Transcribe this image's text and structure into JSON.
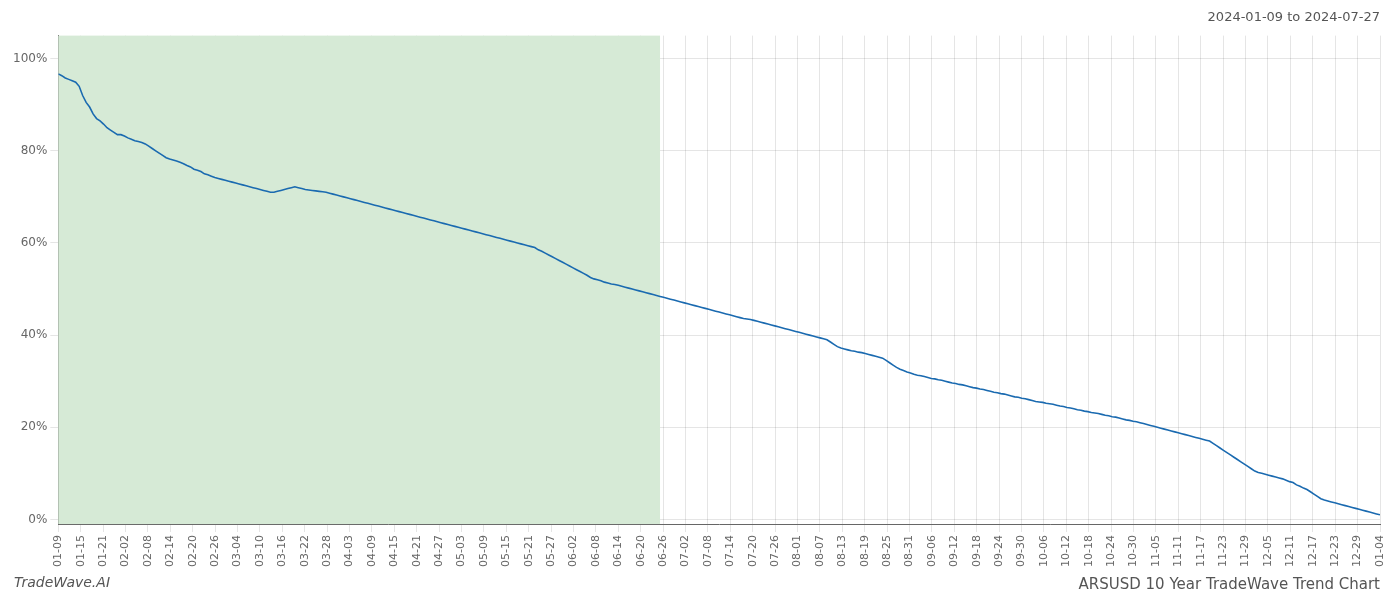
{
  "chart_data": {
    "type": "line",
    "title": "ARSUSD 10 Year TradeWave Trend Chart",
    "subtitle": "2024-01-09 to 2024-07-27",
    "annotations": [
      "TradeWave.AI"
    ],
    "color": "#1a6ab0",
    "grid": true,
    "shaded": {
      "x": [
        0,
        173
      ],
      "color": "#d6ead6"
    },
    "xlim": [
      0,
      380
    ],
    "xticks": [
      {
        "value": 0,
        "label": "01-09"
      },
      {
        "value": 6.441,
        "label": "01-15"
      },
      {
        "value": 12.881,
        "label": "01-21"
      },
      {
        "value": 19.322,
        "label": "02-02"
      },
      {
        "value": 25.763,
        "label": "02-08"
      },
      {
        "value": 32.203,
        "label": "02-14"
      },
      {
        "value": 38.644,
        "label": "02-20"
      },
      {
        "value": 45.085,
        "label": "02-26"
      },
      {
        "value": 51.525,
        "label": "03-04"
      },
      {
        "value": 57.966,
        "label": "03-10"
      },
      {
        "value": 64.407,
        "label": "03-16"
      },
      {
        "value": 70.847,
        "label": "03-22"
      },
      {
        "value": 77.288,
        "label": "03-28"
      },
      {
        "value": 83.729,
        "label": "04-03"
      },
      {
        "value": 90.169,
        "label": "04-09"
      },
      {
        "value": 96.61,
        "label": "04-15"
      },
      {
        "value": 103.051,
        "label": "04-21"
      },
      {
        "value": 109.492,
        "label": "04-27"
      },
      {
        "value": 115.932,
        "label": "05-03"
      },
      {
        "value": 122.373,
        "label": "05-09"
      },
      {
        "value": 128.814,
        "label": "05-15"
      },
      {
        "value": 135.254,
        "label": "05-21"
      },
      {
        "value": 141.695,
        "label": "05-27"
      },
      {
        "value": 148.136,
        "label": "06-02"
      },
      {
        "value": 154.576,
        "label": "06-08"
      },
      {
        "value": 161.017,
        "label": "06-14"
      },
      {
        "value": 167.458,
        "label": "06-20"
      },
      {
        "value": 173.898,
        "label": "06-26"
      },
      {
        "value": 180.339,
        "label": "07-02"
      },
      {
        "value": 186.78,
        "label": "07-08"
      },
      {
        "value": 193.22,
        "label": "07-14"
      },
      {
        "value": 199.661,
        "label": "07-20"
      },
      {
        "value": 206.102,
        "label": "07-26"
      },
      {
        "value": 212.542,
        "label": "08-01"
      },
      {
        "value": 218.983,
        "label": "08-07"
      },
      {
        "value": 225.424,
        "label": "08-13"
      },
      {
        "value": 231.864,
        "label": "08-19"
      },
      {
        "value": 238.305,
        "label": "08-25"
      },
      {
        "value": 244.746,
        "label": "08-31"
      },
      {
        "value": 251.186,
        "label": "09-06"
      },
      {
        "value": 257.627,
        "label": "09-12"
      },
      {
        "value": 264.068,
        "label": "09-18"
      },
      {
        "value": 270.508,
        "label": "09-24"
      },
      {
        "value": 276.949,
        "label": "09-30"
      },
      {
        "value": 283.39,
        "label": "10-06"
      },
      {
        "value": 289.831,
        "label": "10-12"
      },
      {
        "value": 296.271,
        "label": "10-18"
      },
      {
        "value": 302.712,
        "label": "10-24"
      },
      {
        "value": 309.153,
        "label": "10-30"
      },
      {
        "value": 315.593,
        "label": "11-05"
      },
      {
        "value": 322.034,
        "label": "11-11"
      },
      {
        "value": 328.475,
        "label": "11-17"
      },
      {
        "value": 334.915,
        "label": "11-23"
      },
      {
        "value": 341.356,
        "label": "11-29"
      },
      {
        "value": 347.797,
        "label": "12-05"
      },
      {
        "value": 354.237,
        "label": "12-11"
      },
      {
        "value": 360.678,
        "label": "12-17"
      },
      {
        "value": 367.119,
        "label": "12-23"
      },
      {
        "value": 373.559,
        "label": "12-29"
      },
      {
        "value": 380,
        "label": "01-04"
      }
    ],
    "ylim": [
      -0.01,
      1.05
    ],
    "yticks": [
      {
        "value": 0.0,
        "label": "0%"
      },
      {
        "value": 0.2,
        "label": "20%"
      },
      {
        "value": 0.4,
        "label": "40%"
      },
      {
        "value": 0.6,
        "label": "60%"
      },
      {
        "value": 0.8,
        "label": "80%"
      },
      {
        "value": 1.0,
        "label": "100%"
      }
    ],
    "values": [
      0.967,
      0.963,
      0.958,
      0.955,
      0.952,
      0.949,
      0.94,
      0.92,
      0.905,
      0.895,
      0.88,
      0.87,
      0.865,
      0.858,
      0.85,
      0.845,
      0.84,
      0.835,
      0.835,
      0.832,
      0.828,
      0.825,
      0.822,
      0.82,
      0.818,
      0.815,
      0.81,
      0.805,
      0.8,
      0.795,
      0.79,
      0.785,
      0.782,
      0.78,
      0.778,
      0.775,
      0.772,
      0.768,
      0.765,
      0.76,
      0.758,
      0.755,
      0.75,
      0.748,
      0.745,
      0.742,
      0.74,
      0.738,
      0.736,
      0.734,
      0.732,
      0.73,
      0.728,
      0.726,
      0.724,
      0.722,
      0.72,
      0.718,
      0.716,
      0.714,
      0.712,
      0.71,
      0.71,
      0.712,
      0.714,
      0.716,
      0.718,
      0.72,
      0.722,
      0.72,
      0.718,
      0.716,
      0.715,
      0.714,
      0.713,
      0.712,
      0.711,
      0.71,
      0.708,
      0.706,
      0.704,
      0.702,
      0.7,
      0.698,
      0.696,
      0.694,
      0.692,
      0.69,
      0.688,
      0.686,
      0.684,
      0.682,
      0.68,
      0.678,
      0.676,
      0.674,
      0.672,
      0.67,
      0.668,
      0.666,
      0.664,
      0.662,
      0.66,
      0.658,
      0.656,
      0.654,
      0.652,
      0.65,
      0.648,
      0.646,
      0.644,
      0.642,
      0.64,
      0.638,
      0.636,
      0.634,
      0.632,
      0.63,
      0.628,
      0.626,
      0.624,
      0.622,
      0.62,
      0.618,
      0.616,
      0.614,
      0.612,
      0.61,
      0.608,
      0.606,
      0.604,
      0.602,
      0.6,
      0.598,
      0.596,
      0.594,
      0.592,
      0.59,
      0.585,
      0.582,
      0.578,
      0.574,
      0.57,
      0.566,
      0.562,
      0.558,
      0.554,
      0.55,
      0.546,
      0.542,
      0.538,
      0.534,
      0.53,
      0.525,
      0.522,
      0.52,
      0.518,
      0.515,
      0.513,
      0.511,
      0.51,
      0.508,
      0.506,
      0.504,
      0.502,
      0.5,
      0.498,
      0.496,
      0.494,
      0.492,
      0.49,
      0.488,
      0.486,
      0.484,
      0.482,
      0.48,
      0.478,
      0.476,
      0.474,
      0.472,
      0.47,
      0.468,
      0.466,
      0.464,
      0.462,
      0.46,
      0.458,
      0.456,
      0.454,
      0.452,
      0.45,
      0.448,
      0.446,
      0.444,
      0.442,
      0.44,
      0.438,
      0.436,
      0.435,
      0.434,
      0.432,
      0.43,
      0.428,
      0.426,
      0.424,
      0.422,
      0.42,
      0.418,
      0.416,
      0.414,
      0.412,
      0.41,
      0.408,
      0.406,
      0.404,
      0.402,
      0.4,
      0.398,
      0.396,
      0.394,
      0.392,
      0.39,
      0.385,
      0.38,
      0.375,
      0.372,
      0.37,
      0.368,
      0.366,
      0.365,
      0.363,
      0.362,
      0.36,
      0.358,
      0.356,
      0.354,
      0.352,
      0.35,
      0.345,
      0.34,
      0.335,
      0.33,
      0.326,
      0.323,
      0.32,
      0.318,
      0.315,
      0.313,
      0.312,
      0.31,
      0.308,
      0.306,
      0.305,
      0.303,
      0.302,
      0.3,
      0.298,
      0.296,
      0.295,
      0.293,
      0.292,
      0.29,
      0.288,
      0.286,
      0.285,
      0.283,
      0.282,
      0.28,
      0.278,
      0.276,
      0.275,
      0.273,
      0.272,
      0.27,
      0.268,
      0.266,
      0.265,
      0.263,
      0.262,
      0.26,
      0.258,
      0.256,
      0.255,
      0.254,
      0.252,
      0.251,
      0.25,
      0.248,
      0.246,
      0.245,
      0.243,
      0.242,
      0.24,
      0.238,
      0.237,
      0.235,
      0.234,
      0.232,
      0.231,
      0.23,
      0.228,
      0.226,
      0.225,
      0.223,
      0.222,
      0.22,
      0.218,
      0.216,
      0.215,
      0.213,
      0.212,
      0.21,
      0.208,
      0.206,
      0.204,
      0.202,
      0.2,
      0.198,
      0.196,
      0.194,
      0.192,
      0.19,
      0.188,
      0.186,
      0.184,
      0.182,
      0.18,
      0.178,
      0.176,
      0.174,
      0.172,
      0.17,
      0.165,
      0.16,
      0.155,
      0.15,
      0.145,
      0.14,
      0.135,
      0.13,
      0.125,
      0.12,
      0.115,
      0.11,
      0.105,
      0.102,
      0.1,
      0.098,
      0.096,
      0.094,
      0.092,
      0.09,
      0.088,
      0.085,
      0.082,
      0.08,
      0.075,
      0.072,
      0.068,
      0.065,
      0.06,
      0.055,
      0.05,
      0.045,
      0.042,
      0.04,
      0.038,
      0.036,
      0.034,
      0.032,
      0.03,
      0.028,
      0.026,
      0.024,
      0.022,
      0.02,
      0.018,
      0.016,
      0.014,
      0.012,
      0.01
    ]
  }
}
